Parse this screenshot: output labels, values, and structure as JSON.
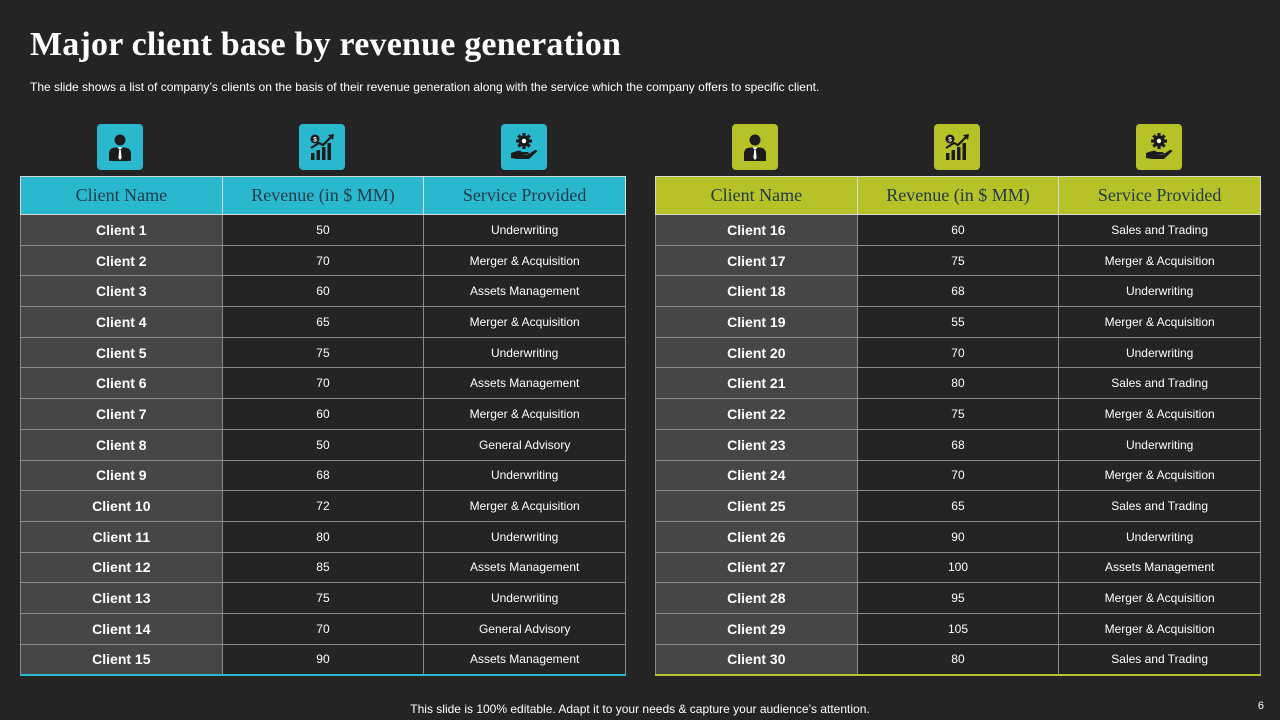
{
  "title": "Major client base by revenue generation",
  "subtitle": "The slide shows a list of company’s clients on the basis of their revenue generation along with the service which the company offers to  specific client.",
  "colors": {
    "left_accent": "#2ab8cf",
    "right_accent": "#b7c228",
    "background": "#242424",
    "name_cell": "#464646"
  },
  "left_table": {
    "icons": [
      "businessman-icon",
      "revenue-growth-chart-icon",
      "service-gear-hand-icon"
    ],
    "headers": [
      "Client Name",
      "Revenue (in $ MM)",
      "Service Provided"
    ],
    "rows": [
      [
        "Client 1",
        "50",
        "Underwriting"
      ],
      [
        "Client 2",
        "70",
        "Merger & Acquisition"
      ],
      [
        "Client 3",
        "60",
        "Assets Management"
      ],
      [
        "Client 4",
        "65",
        "Merger & Acquisition"
      ],
      [
        "Client 5",
        "75",
        "Underwriting"
      ],
      [
        "Client 6",
        "70",
        "Assets Management"
      ],
      [
        "Client 7",
        "60",
        "Merger & Acquisition"
      ],
      [
        "Client 8",
        "50",
        "General Advisory"
      ],
      [
        "Client 9",
        "68",
        "Underwriting"
      ],
      [
        "Client 10",
        "72",
        "Merger & Acquisition"
      ],
      [
        "Client 11",
        "80",
        "Underwriting"
      ],
      [
        "Client 12",
        "85",
        "Assets Management"
      ],
      [
        "Client 13",
        "75",
        "Underwriting"
      ],
      [
        "Client 14",
        "70",
        "General Advisory"
      ],
      [
        "Client 15",
        "90",
        "Assets Management"
      ]
    ]
  },
  "right_table": {
    "icons": [
      "businessman-icon",
      "revenue-growth-chart-icon",
      "service-gear-hand-icon"
    ],
    "headers": [
      "Client Name",
      "Revenue (in $ MM)",
      "Service Provided"
    ],
    "rows": [
      [
        "Client 16",
        "60",
        "Sales and Trading"
      ],
      [
        "Client 17",
        "75",
        "Merger & Acquisition"
      ],
      [
        "Client 18",
        "68",
        "Underwriting"
      ],
      [
        "Client 19",
        "55",
        "Merger & Acquisition"
      ],
      [
        "Client 20",
        "70",
        "Underwriting"
      ],
      [
        "Client 21",
        "80",
        "Sales and Trading"
      ],
      [
        "Client 22",
        "75",
        "Merger & Acquisition"
      ],
      [
        "Client 23",
        "68",
        "Underwriting"
      ],
      [
        "Client 24",
        "70",
        "Merger & Acquisition"
      ],
      [
        "Client 25",
        "65",
        "Sales and Trading"
      ],
      [
        "Client 26",
        "90",
        "Underwriting"
      ],
      [
        "Client 27",
        "100",
        "Assets Management"
      ],
      [
        "Client 28",
        "95",
        "Merger & Acquisition"
      ],
      [
        "Client 29",
        "105",
        "Merger & Acquisition"
      ],
      [
        "Client 30",
        "80",
        "Sales and Trading"
      ]
    ]
  },
  "footer": "This slide is 100% editable. Adapt it to your needs & capture your audience’s attention.",
  "page_number": "6"
}
